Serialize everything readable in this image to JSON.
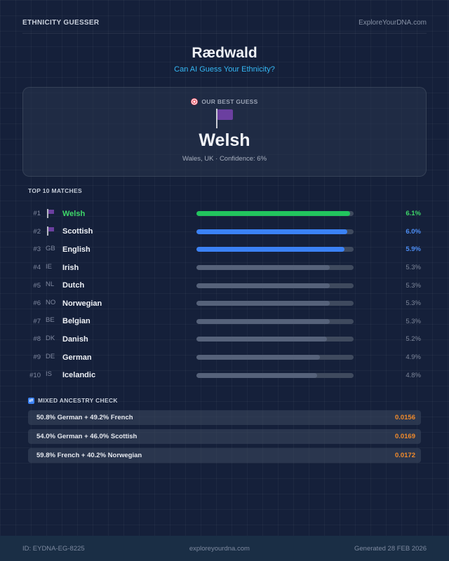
{
  "header": {
    "app_name": "ETHNICITY GUESSER",
    "site": "ExploreYourDNA.com"
  },
  "title": "Rædwald",
  "subtitle": "Can AI Guess Your Ethnicity?",
  "best_guess": {
    "label": "OUR BEST GUESS",
    "icon": "target-icon",
    "flag_icon": "purple-flag-icon",
    "name": "Welsh",
    "meta": "Wales, UK  ·  Confidence: 6%"
  },
  "matches_title": "TOP 10 MATCHES",
  "matches": [
    {
      "rank": "#1",
      "code": "",
      "flag": true,
      "name": "Welsh",
      "pct": "6.1%",
      "value": 6.1,
      "color": "#22c55e",
      "style": "green"
    },
    {
      "rank": "#2",
      "code": "",
      "flag": true,
      "name": "Scottish",
      "pct": "6.0%",
      "value": 6.0,
      "color": "#3b82f6",
      "style": "blue"
    },
    {
      "rank": "#3",
      "code": "GB",
      "flag": false,
      "name": "English",
      "pct": "5.9%",
      "value": 5.9,
      "color": "#3b82f6",
      "style": "blue"
    },
    {
      "rank": "#4",
      "code": "IE",
      "flag": false,
      "name": "Irish",
      "pct": "5.3%",
      "value": 5.3,
      "color": "#56627a",
      "style": ""
    },
    {
      "rank": "#5",
      "code": "NL",
      "flag": false,
      "name": "Dutch",
      "pct": "5.3%",
      "value": 5.3,
      "color": "#56627a",
      "style": ""
    },
    {
      "rank": "#6",
      "code": "NO",
      "flag": false,
      "name": "Norwegian",
      "pct": "5.3%",
      "value": 5.3,
      "color": "#56627a",
      "style": ""
    },
    {
      "rank": "#7",
      "code": "BE",
      "flag": false,
      "name": "Belgian",
      "pct": "5.3%",
      "value": 5.3,
      "color": "#56627a",
      "style": ""
    },
    {
      "rank": "#8",
      "code": "DK",
      "flag": false,
      "name": "Danish",
      "pct": "5.2%",
      "value": 5.2,
      "color": "#56627a",
      "style": ""
    },
    {
      "rank": "#9",
      "code": "DE",
      "flag": false,
      "name": "German",
      "pct": "4.9%",
      "value": 4.9,
      "color": "#56627a",
      "style": ""
    },
    {
      "rank": "#10",
      "code": "IS",
      "flag": false,
      "name": "Icelandic",
      "pct": "4.8%",
      "value": 4.8,
      "color": "#56627a",
      "style": ""
    }
  ],
  "mixed_title": "MIXED ANCESTRY CHECK",
  "mixed_icon": "shuffle-icon",
  "mixed": [
    {
      "label": "50.8% German + 49.2% French",
      "score": "0.0156"
    },
    {
      "label": "54.0% German + 46.0% Scottish",
      "score": "0.0169"
    },
    {
      "label": "59.8% French + 40.2% Norwegian",
      "score": "0.0172"
    }
  ],
  "footer": {
    "id": "ID: EYDNA-EG-8225",
    "site": "exploreyourdna.com",
    "generated": "Generated 28 FEB 2026"
  }
}
